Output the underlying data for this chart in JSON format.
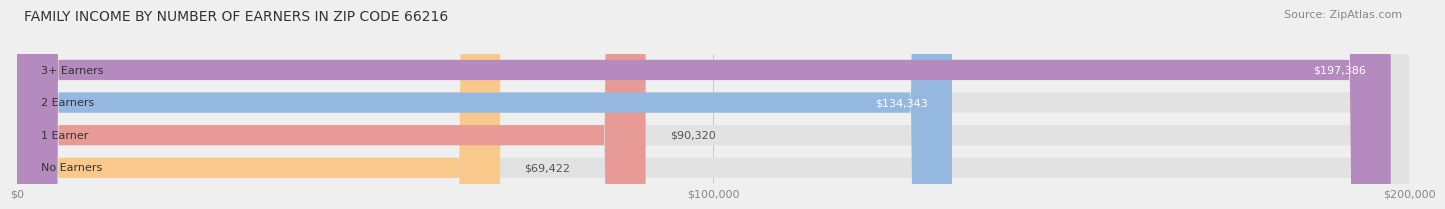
{
  "title": "FAMILY INCOME BY NUMBER OF EARNERS IN ZIP CODE 66216",
  "source": "Source: ZipAtlas.com",
  "categories": [
    "No Earners",
    "1 Earner",
    "2 Earners",
    "3+ Earners"
  ],
  "values": [
    69422,
    90320,
    134343,
    197386
  ],
  "bar_colors": [
    "#f8c98a",
    "#e89a96",
    "#94b8e0",
    "#b48abf"
  ],
  "label_colors": [
    "#555555",
    "#555555",
    "#ffffff",
    "#ffffff"
  ],
  "background_color": "#efefef",
  "bar_bg_color": "#e2e2e2",
  "xlim": [
    0,
    200000
  ],
  "xtick_values": [
    0,
    100000,
    200000
  ],
  "xtick_labels": [
    "$0",
    "$100,000",
    "$200,000"
  ],
  "title_fontsize": 10,
  "source_fontsize": 8,
  "bar_label_fontsize": 8,
  "tick_fontsize": 8,
  "category_fontsize": 8
}
